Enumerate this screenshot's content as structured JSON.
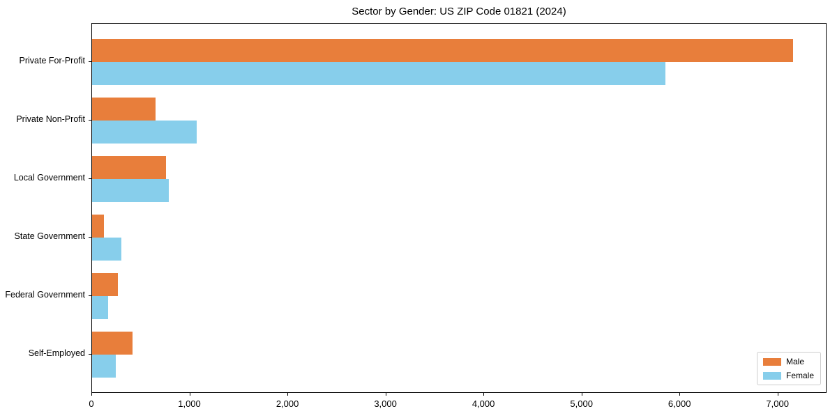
{
  "chart_data": {
    "type": "bar",
    "orientation": "horizontal",
    "title": "Sector by Gender: US ZIP Code 01821 (2024)",
    "categories": [
      "Private For-Profit",
      "Private Non-Profit",
      "Local Government",
      "State Government",
      "Federal Government",
      "Self-Employed"
    ],
    "series": [
      {
        "name": "Male",
        "color": "#e87e3b",
        "values": [
          7150,
          650,
          755,
          120,
          265,
          415
        ]
      },
      {
        "name": "Female",
        "color": "#87ceeb",
        "values": [
          5850,
          1070,
          780,
          300,
          165,
          240
        ]
      }
    ],
    "xlabel": "",
    "ylabel": "",
    "xlim": [
      0,
      7500
    ],
    "xticks": [
      0,
      1000,
      2000,
      3000,
      4000,
      5000,
      6000,
      7000
    ],
    "xtick_labels": [
      "0",
      "1,000",
      "2,000",
      "3,000",
      "4,000",
      "5,000",
      "6,000",
      "7,000"
    ],
    "grid": false,
    "legend": {
      "position": "lower right",
      "entries": [
        "Male",
        "Female"
      ]
    }
  }
}
